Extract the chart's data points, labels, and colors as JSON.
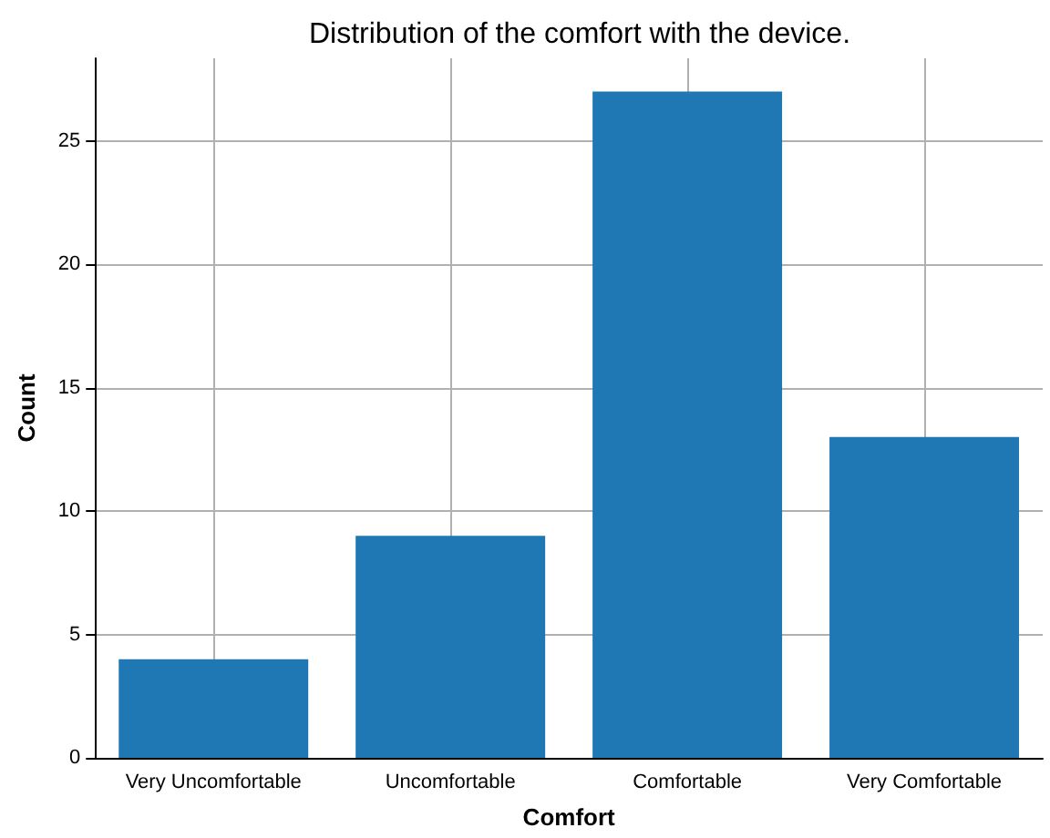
{
  "chart_data": {
    "type": "bar",
    "title": "Distribution of the comfort with the device.",
    "xlabel": "Comfort",
    "ylabel": "Count",
    "categories": [
      "Very Uncomfortable",
      "Uncomfortable",
      "Comfortable",
      "Very Comfortable"
    ],
    "values": [
      4,
      9,
      27,
      13
    ],
    "color": "#1f77b4",
    "ylim": [
      0,
      28.35
    ],
    "yticks": [
      0,
      5,
      10,
      15,
      20,
      25
    ],
    "grid": true
  }
}
